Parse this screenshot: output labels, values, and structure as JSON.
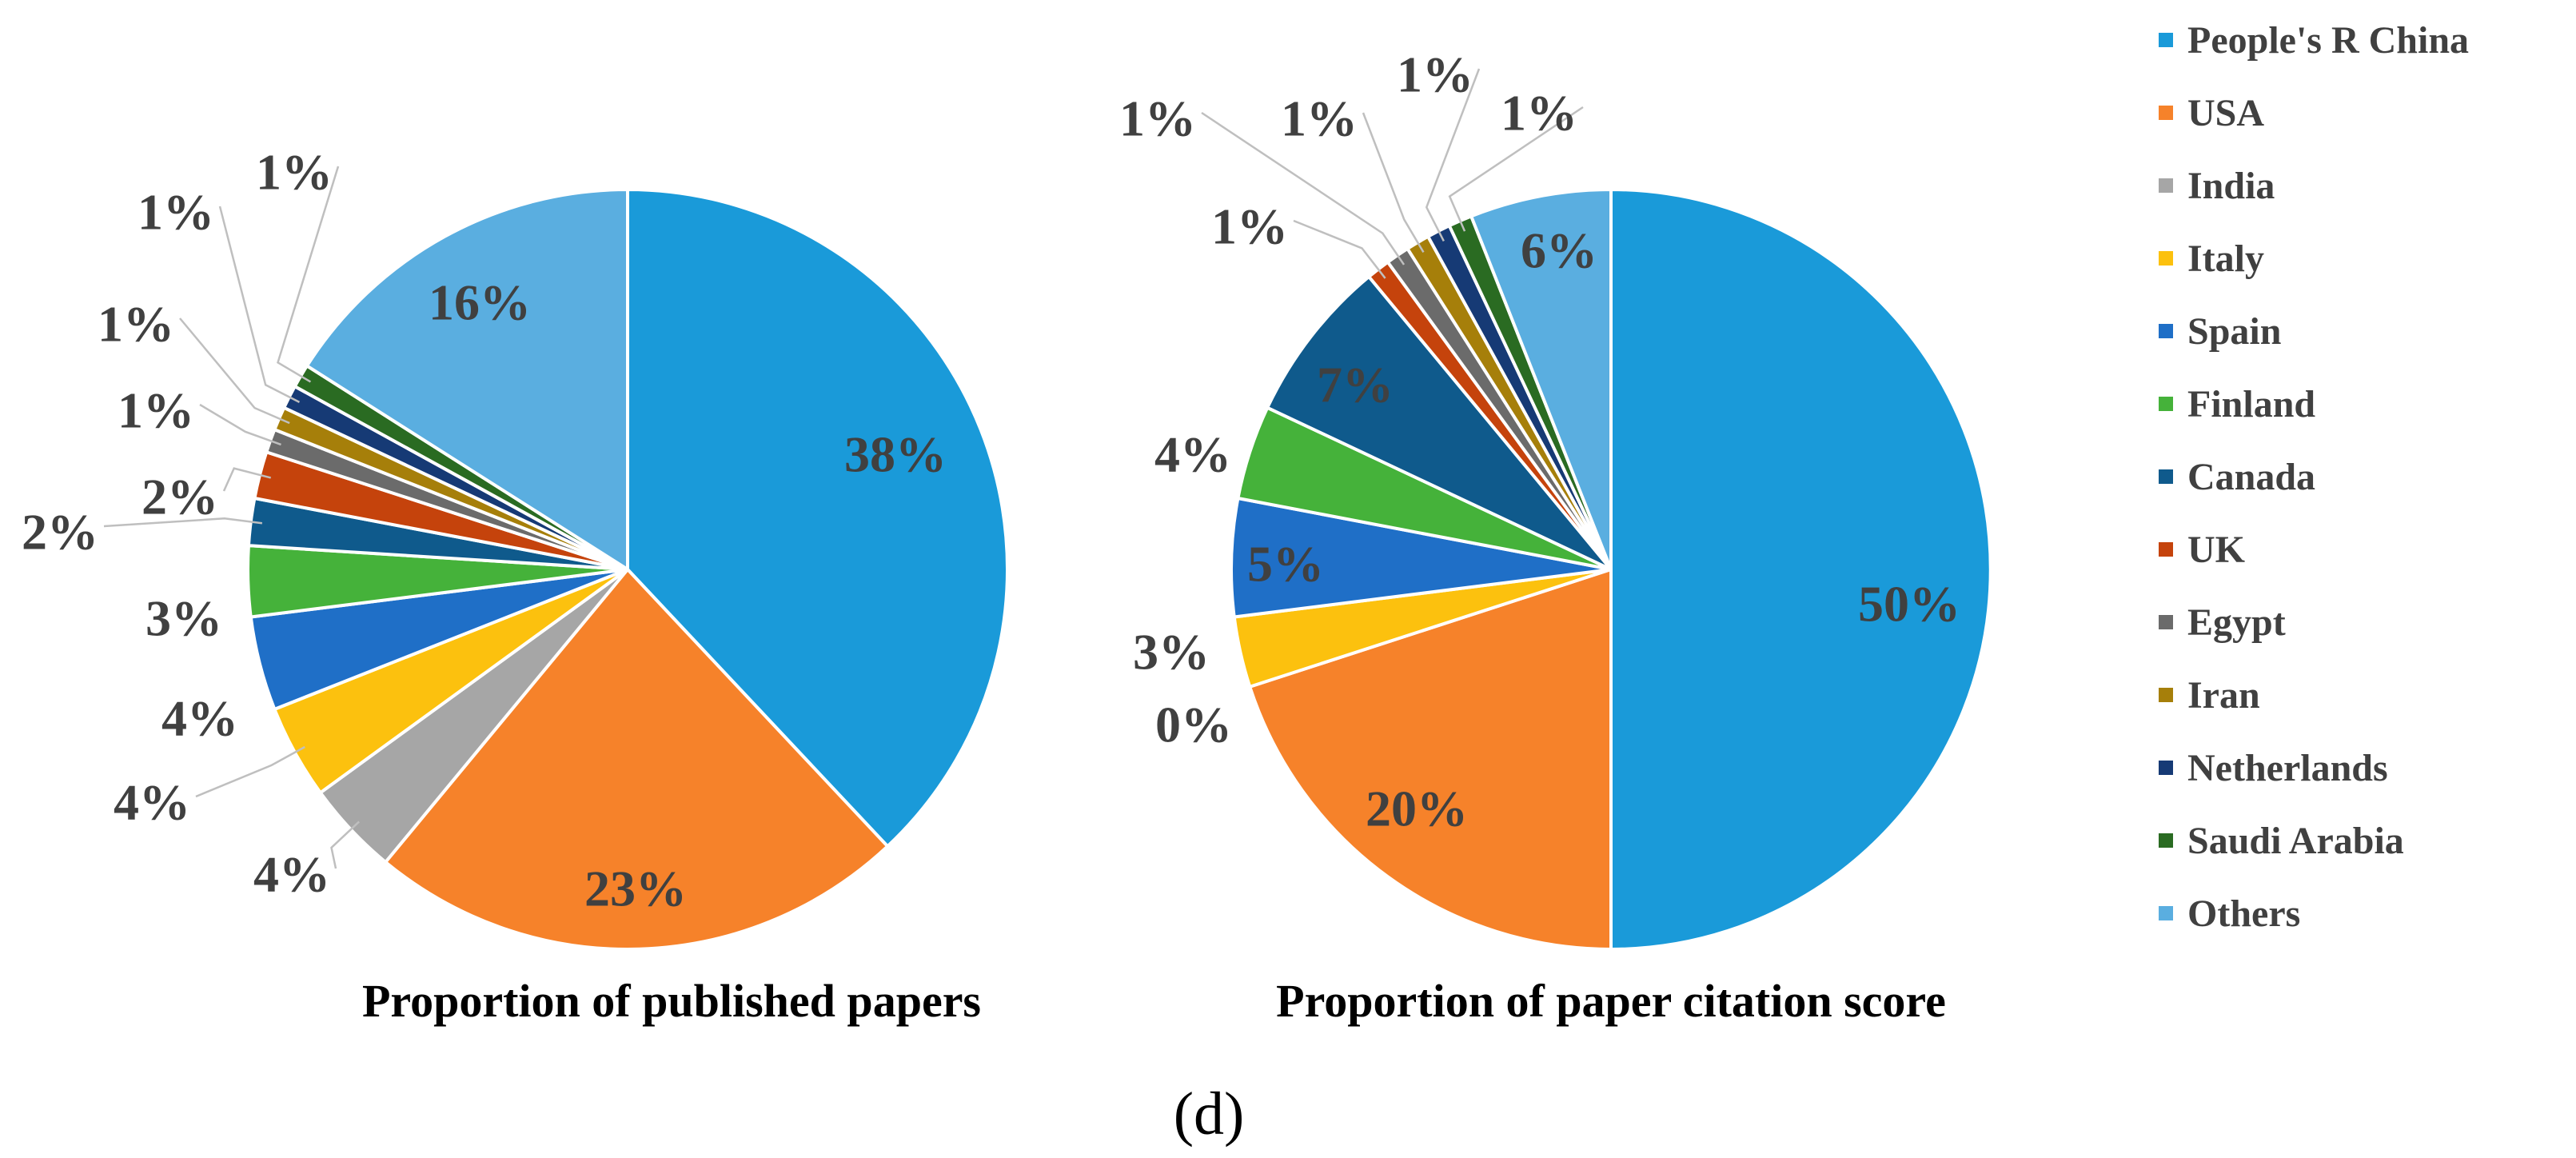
{
  "colors": {
    "People's R China": "#1a9ad9",
    "USA": "#f6822a",
    "India": "#a6a6a6",
    "Italy": "#fcc10e",
    "Spain": "#1f6fc7",
    "Finland": "#45b23a",
    "Canada": "#0f5a8c",
    "UK": "#c5430c",
    "Egypt": "#6b6b6b",
    "Iran": "#a67f0a",
    "Netherlands": "#163a75",
    "Saudi Arabia": "#2a6b22",
    "Others": "#5aaee0"
  },
  "legend": {
    "items": [
      "People's R China",
      "USA",
      "India",
      "Italy",
      "Spain",
      "Finland",
      "Canada",
      "UK",
      "Egypt",
      "Iran",
      "Netherlands",
      "Saudi Arabia",
      "Others"
    ]
  },
  "chart_data": [
    {
      "type": "pie",
      "title": "Proportion of published papers",
      "slices": [
        {
          "name": "People's R China",
          "value": 38,
          "label": "38%"
        },
        {
          "name": "USA",
          "value": 23,
          "label": "23%"
        },
        {
          "name": "India",
          "value": 4,
          "label": "4%"
        },
        {
          "name": "Italy",
          "value": 4,
          "label": "4%"
        },
        {
          "name": "Spain",
          "value": 4,
          "label": "4%"
        },
        {
          "name": "Finland",
          "value": 3,
          "label": "3%"
        },
        {
          "name": "Canada",
          "value": 2,
          "label": "2%"
        },
        {
          "name": "UK",
          "value": 2,
          "label": "2%"
        },
        {
          "name": "Egypt",
          "value": 1,
          "label": "1%"
        },
        {
          "name": "Iran",
          "value": 1,
          "label": "1%"
        },
        {
          "name": "Netherlands",
          "value": 1,
          "label": "1%"
        },
        {
          "name": "Saudi Arabia",
          "value": 1,
          "label": "1%"
        },
        {
          "name": "Others",
          "value": 16,
          "label": "16%"
        }
      ]
    },
    {
      "type": "pie",
      "title": "Proportion of paper citation score",
      "slices": [
        {
          "name": "People's R China",
          "value": 50,
          "label": "50%"
        },
        {
          "name": "USA",
          "value": 20,
          "label": "20%"
        },
        {
          "name": "India",
          "value": 0,
          "label": "0%"
        },
        {
          "name": "Italy",
          "value": 3,
          "label": "3%"
        },
        {
          "name": "Spain",
          "value": 5,
          "label": "5%"
        },
        {
          "name": "Finland",
          "value": 4,
          "label": "4%"
        },
        {
          "name": "Canada",
          "value": 7,
          "label": "7%"
        },
        {
          "name": "UK",
          "value": 1,
          "label": "1%"
        },
        {
          "name": "Egypt",
          "value": 1,
          "label": "1%"
        },
        {
          "name": "Iran",
          "value": 1,
          "label": "1%"
        },
        {
          "name": "Netherlands",
          "value": 1,
          "label": "1%"
        },
        {
          "name": "Saudi Arabia",
          "value": 1,
          "label": "1%"
        },
        {
          "name": "Others",
          "value": 6,
          "label": "6%"
        }
      ]
    }
  ],
  "panel_label": "(d)"
}
